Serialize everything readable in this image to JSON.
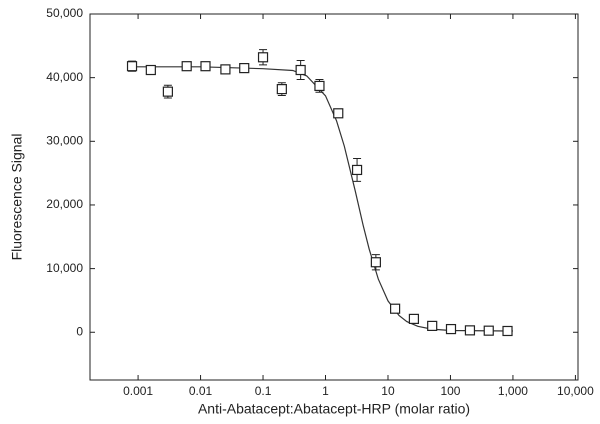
{
  "chart_data": {
    "type": "scatter",
    "x_label": "Anti-Abatacept:Abatacept-HRP (molar ratio)",
    "y_label": "Fluorescence Signal",
    "xlog": true,
    "xlim": [
      0.00017,
      11000
    ],
    "ylim": [
      -7500,
      50000
    ],
    "xticks": [
      0.001,
      0.01,
      0.1,
      1,
      10,
      100,
      {
        "value": 1000,
        "label": "1,000"
      },
      {
        "value": 10000,
        "label": "10,000"
      }
    ],
    "yticks": [
      0,
      {
        "value": 10000,
        "label": "10,000"
      },
      {
        "value": 20000,
        "label": "20,000"
      },
      {
        "value": 30000,
        "label": "30,000"
      },
      {
        "value": 40000,
        "label": "40,000"
      },
      {
        "value": 50000,
        "label": "50,000"
      }
    ],
    "color": "#222222",
    "series": [
      {
        "x": [
          0.0008,
          0.0016,
          0.003,
          0.006,
          0.012,
          0.025,
          0.05,
          0.1,
          0.2,
          0.4,
          0.8,
          1.6,
          3.2,
          6.4,
          13,
          26,
          51,
          102,
          205,
          410,
          819
        ],
        "values": [
          41800,
          41200,
          37800,
          41800,
          41800,
          41300,
          41500,
          43200,
          38200,
          41200,
          38700,
          34400,
          25500,
          11000,
          3700,
          2100,
          1000,
          500,
          300,
          250,
          200
        ],
        "errors": [
          800,
          400,
          1000,
          600,
          500,
          400,
          400,
          1200,
          1000,
          1500,
          1000,
          600,
          1800,
          1200,
          600,
          400,
          300,
          300,
          200,
          200,
          200
        ]
      }
    ],
    "fit": {
      "x": [
        0.0007,
        0.01,
        0.1,
        0.3,
        0.5,
        1,
        1.5,
        2,
        3,
        4,
        5,
        7,
        10,
        15,
        20,
        30,
        50,
        100,
        1000
      ],
      "values": [
        41700,
        41700,
        41400,
        41120,
        40280,
        37150,
        33240,
        29240,
        22160,
        16840,
        13050,
        8350,
        4930,
        2630,
        1680,
        930,
        490,
        284,
        200
      ]
    }
  }
}
